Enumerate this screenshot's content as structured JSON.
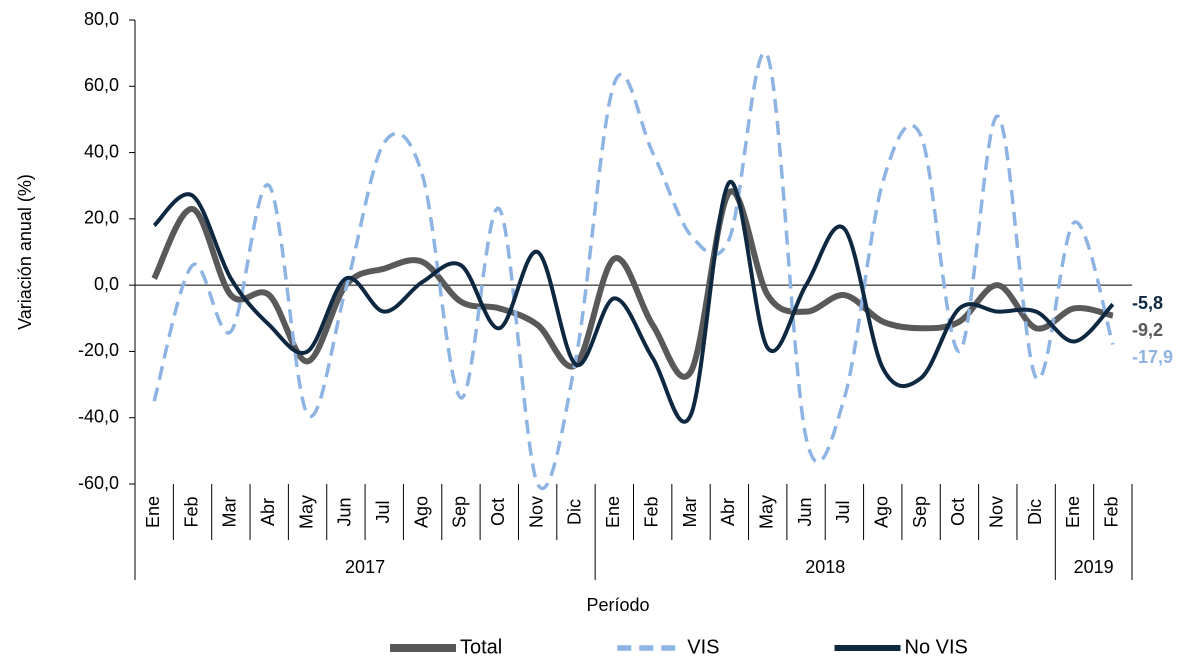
{
  "chart_data": {
    "type": "line",
    "y_label": "Variación anual (%)",
    "x_label": "Período",
    "categories": [
      "Ene",
      "Feb",
      "Mar",
      "Abr",
      "May",
      "Jun",
      "Jul",
      "Ago",
      "Sep",
      "Oct",
      "Nov",
      "Dic",
      "Ene",
      "Feb",
      "Mar",
      "Abr",
      "May",
      "Jun",
      "Jul",
      "Ago",
      "Sep",
      "Oct",
      "Nov",
      "Dic",
      "Ene",
      "Feb"
    ],
    "year_groups": [
      {
        "label": "2017",
        "months": 12
      },
      {
        "label": "2018",
        "months": 12
      },
      {
        "label": "2019",
        "months": 2
      }
    ],
    "ylim": [
      -60,
      80
    ],
    "yticks": [
      {
        "value": -60,
        "label": "-60,0"
      },
      {
        "value": -40,
        "label": "-40,0"
      },
      {
        "value": -20,
        "label": "-20,0"
      },
      {
        "value": 0,
        "label": "0,0"
      },
      {
        "value": 20,
        "label": "20,0"
      },
      {
        "value": 40,
        "label": "40,0"
      },
      {
        "value": 60,
        "label": "60,0"
      },
      {
        "value": 80,
        "label": "80,0"
      }
    ],
    "smooth": true,
    "series": [
      {
        "name": "Total",
        "color": "#595959",
        "dash": false,
        "width": 6,
        "values": [
          2,
          23,
          -3,
          -3,
          -23,
          0,
          5,
          7,
          -5,
          -7,
          -12,
          -24,
          8,
          -12,
          -26,
          28,
          -3,
          -8,
          -3,
          -11,
          -13,
          -11,
          0,
          -13,
          -7,
          -9.2
        ],
        "end_label": "-9,2"
      },
      {
        "name": "VIS",
        "color": "#8db4e2",
        "dash": true,
        "width": 3.5,
        "values": [
          -35,
          6,
          -14,
          30,
          -39,
          -1,
          43,
          33,
          -34,
          23,
          -60,
          -22,
          61,
          40,
          15,
          14,
          69,
          -46,
          -34,
          31,
          45,
          -20,
          51,
          -28,
          19,
          -17.9
        ],
        "end_label": "-17,9"
      },
      {
        "name": "No VIS",
        "color": "#0e2841",
        "dash": false,
        "width": 4,
        "values": [
          18,
          27,
          2,
          -12,
          -20,
          2,
          -8,
          1,
          6,
          -13,
          10,
          -24,
          -4,
          -22,
          -39,
          31,
          -19,
          0,
          17,
          -25,
          -28,
          -7,
          -8,
          -8,
          -17,
          -5.8
        ],
        "end_label": "-5,8"
      }
    ]
  }
}
